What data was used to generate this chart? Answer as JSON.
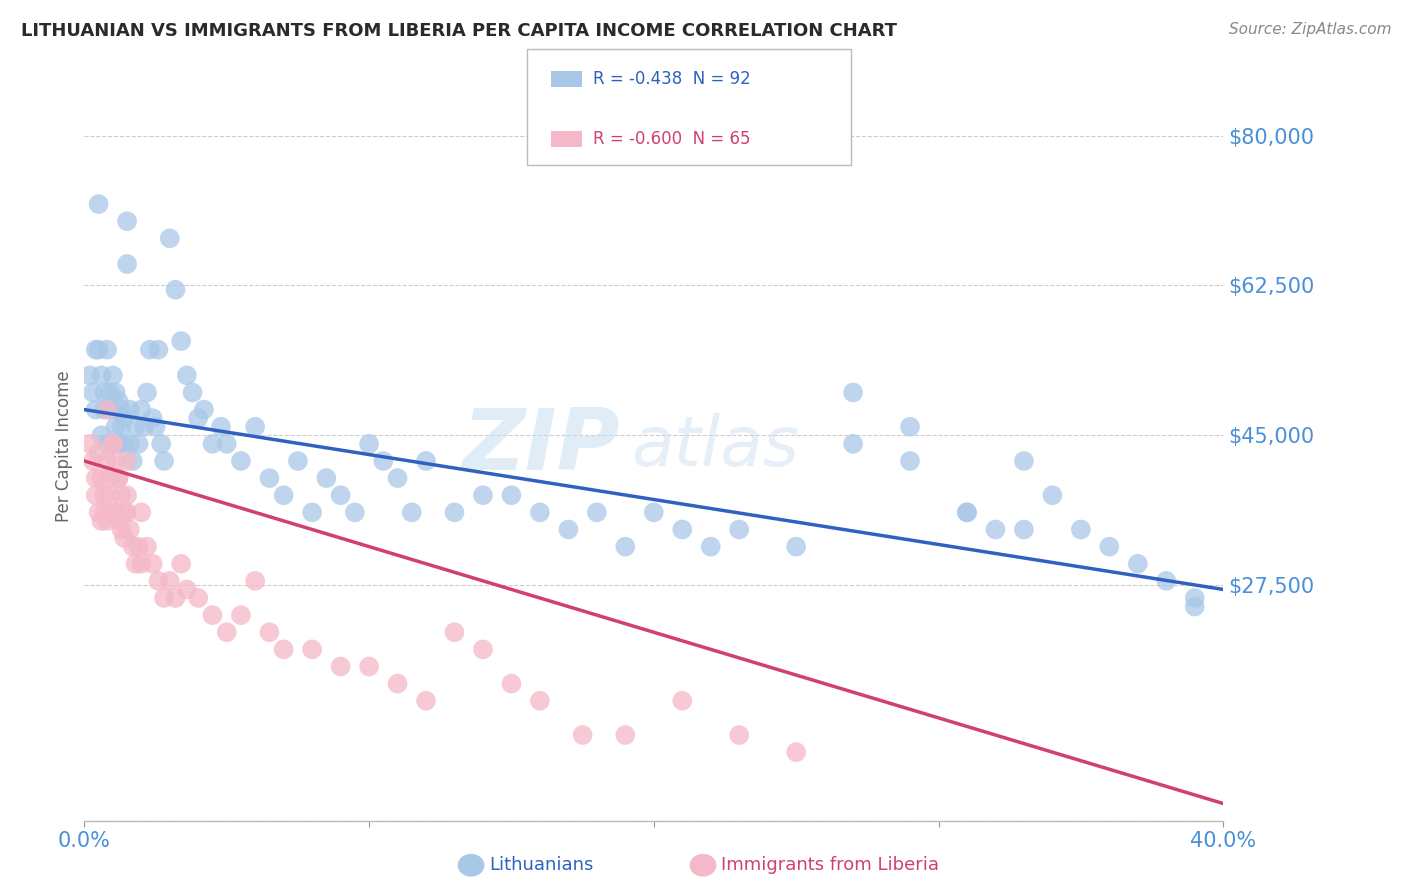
{
  "title": "LITHUANIAN VS IMMIGRANTS FROM LIBERIA PER CAPITA INCOME CORRELATION CHART",
  "source": "Source: ZipAtlas.com",
  "ylabel": "Per Capita Income",
  "xlim": [
    0.0,
    0.4
  ],
  "ylim": [
    0,
    87500
  ],
  "yticks": [
    0,
    27500,
    45000,
    62500,
    80000
  ],
  "xticks": [
    0.0,
    0.1,
    0.2,
    0.3,
    0.4
  ],
  "xticklabels": [
    "0.0%",
    "",
    "",
    "",
    "40.0%"
  ],
  "yticklabels": [
    "",
    "$27,500",
    "$45,000",
    "$62,500",
    "$80,000"
  ],
  "blue_color": "#a8c8e8",
  "pink_color": "#f4b8c8",
  "blue_line_color": "#3060c0",
  "pink_line_color": "#d04070",
  "r_blue": -0.438,
  "n_blue": 92,
  "r_pink": -0.6,
  "n_pink": 65,
  "watermark_zip": "ZIP",
  "watermark_atlas": "atlas",
  "title_color": "#2a2a2a",
  "axis_label_color": "#4a90d9",
  "grid_color": "#cccccc",
  "blue_line_y0": 48000,
  "blue_line_y1": 27000,
  "pink_line_y0": 42000,
  "pink_line_y1": 2000,
  "blue_scatter_x": [
    0.002,
    0.003,
    0.004,
    0.004,
    0.005,
    0.005,
    0.006,
    0.006,
    0.007,
    0.007,
    0.008,
    0.008,
    0.009,
    0.009,
    0.01,
    0.01,
    0.011,
    0.011,
    0.012,
    0.012,
    0.013,
    0.013,
    0.014,
    0.014,
    0.015,
    0.015,
    0.016,
    0.016,
    0.017,
    0.018,
    0.019,
    0.02,
    0.021,
    0.022,
    0.023,
    0.024,
    0.025,
    0.026,
    0.027,
    0.028,
    0.03,
    0.032,
    0.034,
    0.036,
    0.038,
    0.04,
    0.042,
    0.045,
    0.048,
    0.05,
    0.055,
    0.06,
    0.065,
    0.07,
    0.075,
    0.08,
    0.085,
    0.09,
    0.095,
    0.1,
    0.105,
    0.11,
    0.115,
    0.12,
    0.13,
    0.14,
    0.15,
    0.16,
    0.17,
    0.18,
    0.19,
    0.2,
    0.21,
    0.22,
    0.23,
    0.25,
    0.27,
    0.29,
    0.31,
    0.32,
    0.33,
    0.34,
    0.35,
    0.36,
    0.37,
    0.38,
    0.39,
    0.27,
    0.29,
    0.31,
    0.33,
    0.39
  ],
  "blue_scatter_y": [
    52000,
    50000,
    55000,
    48000,
    55000,
    72000,
    52000,
    45000,
    50000,
    48000,
    55000,
    44000,
    50000,
    48000,
    52000,
    44000,
    50000,
    46000,
    49000,
    44000,
    48000,
    46000,
    47000,
    44000,
    70000,
    65000,
    48000,
    44000,
    42000,
    46000,
    44000,
    48000,
    46000,
    50000,
    55000,
    47000,
    46000,
    55000,
    44000,
    42000,
    68000,
    62000,
    56000,
    52000,
    50000,
    47000,
    48000,
    44000,
    46000,
    44000,
    42000,
    46000,
    40000,
    38000,
    42000,
    36000,
    40000,
    38000,
    36000,
    44000,
    42000,
    40000,
    36000,
    42000,
    36000,
    38000,
    38000,
    36000,
    34000,
    36000,
    32000,
    36000,
    34000,
    32000,
    34000,
    32000,
    50000,
    46000,
    36000,
    34000,
    42000,
    38000,
    34000,
    32000,
    30000,
    28000,
    26000,
    44000,
    42000,
    36000,
    34000,
    25000
  ],
  "pink_scatter_x": [
    0.002,
    0.003,
    0.004,
    0.004,
    0.005,
    0.005,
    0.006,
    0.006,
    0.007,
    0.007,
    0.008,
    0.008,
    0.009,
    0.009,
    0.01,
    0.01,
    0.011,
    0.011,
    0.012,
    0.012,
    0.013,
    0.013,
    0.014,
    0.014,
    0.015,
    0.015,
    0.016,
    0.017,
    0.018,
    0.019,
    0.02,
    0.022,
    0.024,
    0.026,
    0.028,
    0.03,
    0.032,
    0.034,
    0.036,
    0.04,
    0.045,
    0.05,
    0.055,
    0.06,
    0.065,
    0.07,
    0.08,
    0.09,
    0.1,
    0.11,
    0.12,
    0.13,
    0.14,
    0.15,
    0.16,
    0.175,
    0.19,
    0.21,
    0.23,
    0.25,
    0.008,
    0.01,
    0.012,
    0.015,
    0.02
  ],
  "pink_scatter_y": [
    44000,
    42000,
    40000,
    38000,
    43000,
    36000,
    40000,
    35000,
    38000,
    36000,
    42000,
    35000,
    40000,
    38000,
    44000,
    36000,
    42000,
    36000,
    40000,
    35000,
    38000,
    34000,
    36000,
    33000,
    42000,
    36000,
    34000,
    32000,
    30000,
    32000,
    30000,
    32000,
    30000,
    28000,
    26000,
    28000,
    26000,
    30000,
    27000,
    26000,
    24000,
    22000,
    24000,
    28000,
    22000,
    20000,
    20000,
    18000,
    18000,
    16000,
    14000,
    22000,
    20000,
    16000,
    14000,
    10000,
    10000,
    14000,
    10000,
    8000,
    48000,
    44000,
    40000,
    38000,
    36000
  ]
}
